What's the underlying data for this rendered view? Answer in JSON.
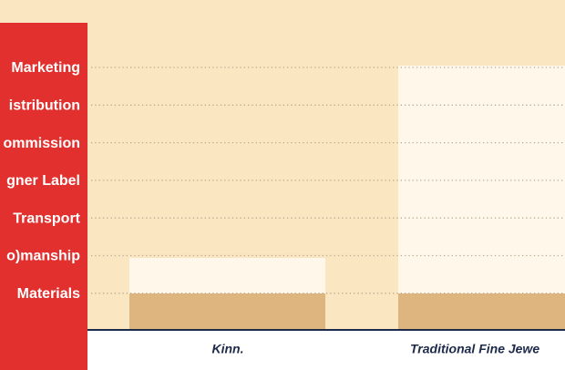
{
  "rows": [
    "Marketing",
    "istribution",
    "ommission",
    "gner Label",
    "Transport",
    "o)manship",
    "Materials"
  ],
  "columns": [
    "Kinn.",
    "Traditional Fine Jewe"
  ]
}
